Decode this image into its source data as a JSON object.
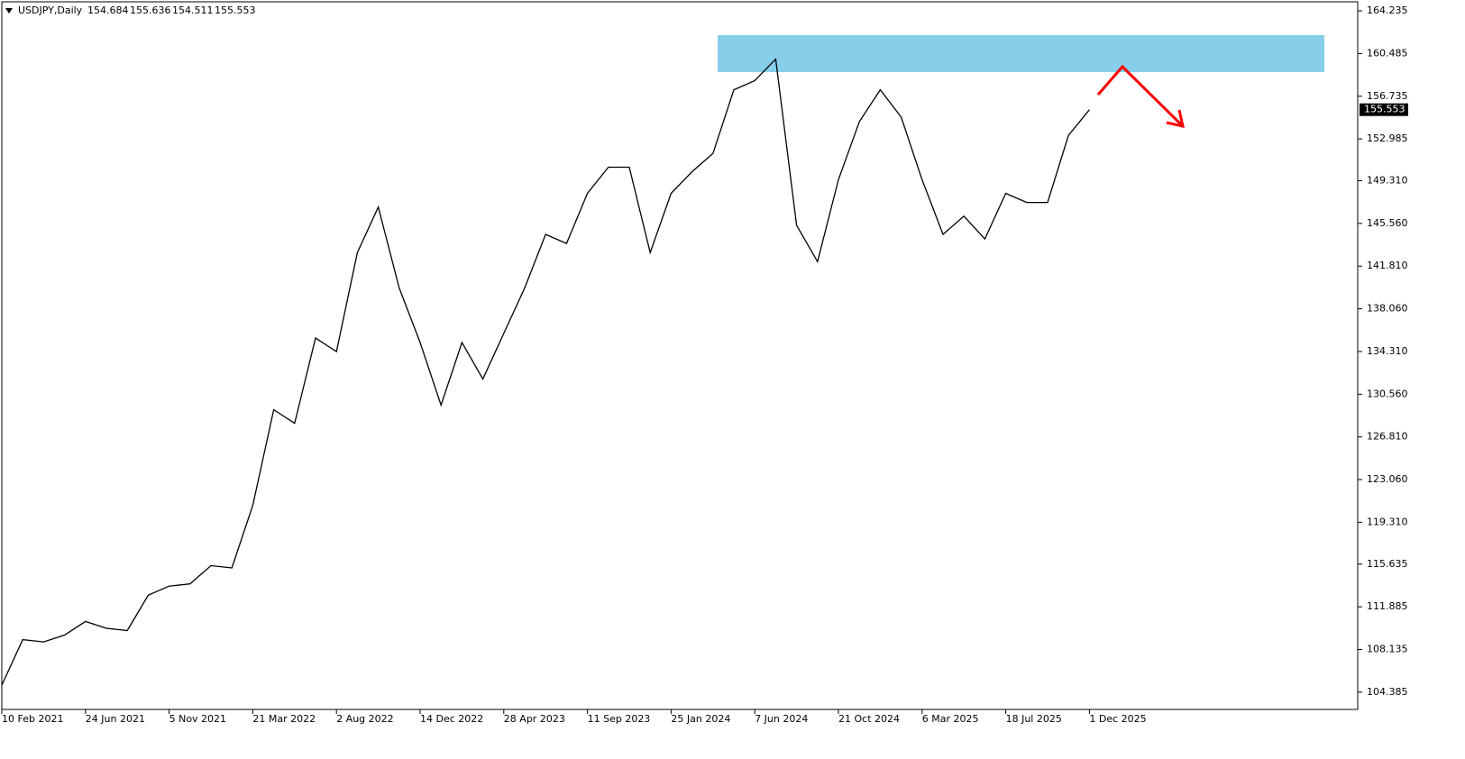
{
  "chart_data": {
    "type": "line",
    "title": "USDJPY,Daily",
    "ohlc": [
      154.684,
      155.636,
      154.511,
      155.553
    ],
    "categories": [
      "10 Feb 2021",
      null,
      null,
      null,
      "24 Jun 2021",
      null,
      null,
      null,
      "5 Nov 2021",
      null,
      null,
      null,
      "21 Mar 2022",
      null,
      null,
      null,
      "2 Aug 2022",
      null,
      null,
      null,
      "14 Dec 2022",
      null,
      null,
      null,
      "28 Apr 2023",
      null,
      null,
      null,
      "11 Sep 2023",
      null,
      null,
      null,
      "25 Jan 2024",
      null,
      null,
      null,
      "7 Jun 2024",
      null,
      null,
      null,
      "21 Oct 2024",
      null,
      null,
      null,
      "6 Mar 2025",
      null,
      null,
      null,
      "18 Jul 2025",
      null,
      null,
      null,
      "1 Dec 2025"
    ],
    "series": [
      {
        "name": "USDJPY",
        "color": "#000000",
        "values": [
          105.0,
          109.0,
          108.8,
          109.4,
          110.6,
          110.0,
          109.8,
          112.9,
          113.7,
          113.9,
          115.5,
          115.3,
          120.8,
          129.2,
          128.0,
          135.5,
          134.3,
          143.0,
          147.0,
          139.9,
          135.1,
          129.6,
          135.1,
          131.9,
          135.9,
          139.9,
          144.6,
          143.8,
          148.2,
          150.5,
          150.5,
          143.0,
          148.2,
          150.1,
          151.7,
          157.3,
          158.1,
          160.0,
          145.4,
          142.2,
          149.4,
          154.5,
          157.3,
          154.9,
          149.4,
          144.6,
          146.2,
          144.2,
          148.2,
          147.4,
          147.4,
          153.3,
          155.553
        ]
      }
    ],
    "ylim": [
      102.87,
      165.03
    ],
    "yticks": [
      164.235,
      160.485,
      156.735,
      152.985,
      {
        "value": 149.31,
        "label": "149.310"
      },
      {
        "value": 145.56,
        "label": "145.560"
      },
      {
        "value": 141.81,
        "label": "141.810"
      },
      {
        "value": 138.06,
        "label": "138.060"
      },
      {
        "value": 134.31,
        "label": "134.310"
      },
      {
        "value": 130.56,
        "label": "130.560"
      },
      {
        "value": 126.81,
        "label": "126.810"
      },
      {
        "value": 123.06,
        "label": "123.060"
      },
      {
        "value": 119.31,
        "label": "119.310"
      },
      115.635,
      111.885,
      108.135,
      104.385
    ],
    "grid": false
  }
}
